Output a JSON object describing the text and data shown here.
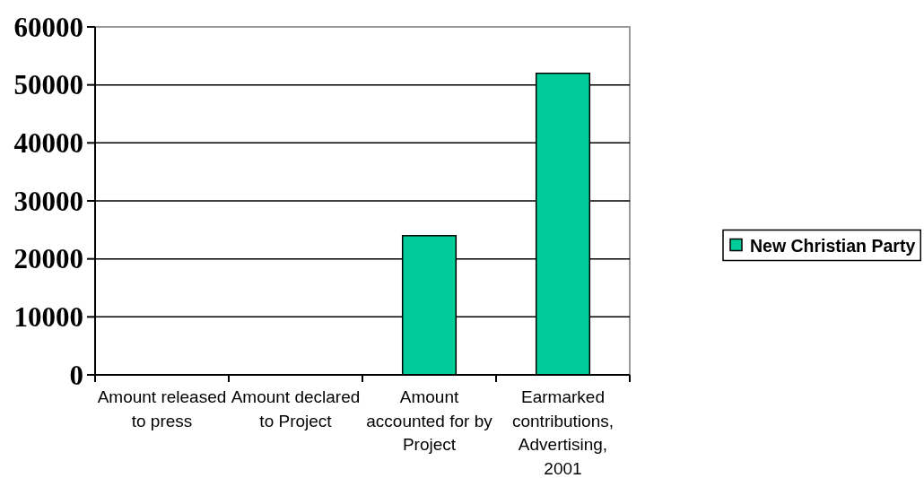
{
  "chart_data": {
    "type": "bar",
    "categories": [
      "Amount released to press",
      "Amount declared to Project",
      "Amount accounted for by Project",
      "Earmarked contributions, Advertising, 2001"
    ],
    "series": [
      {
        "name": "New Christian Party",
        "color": "#00cc99",
        "values": [
          0,
          0,
          24000,
          52000
        ]
      }
    ],
    "ylim": [
      0,
      60000
    ],
    "yticks": [
      0,
      10000,
      20000,
      30000,
      40000,
      50000,
      60000
    ],
    "grid": "y",
    "legend": "right"
  }
}
